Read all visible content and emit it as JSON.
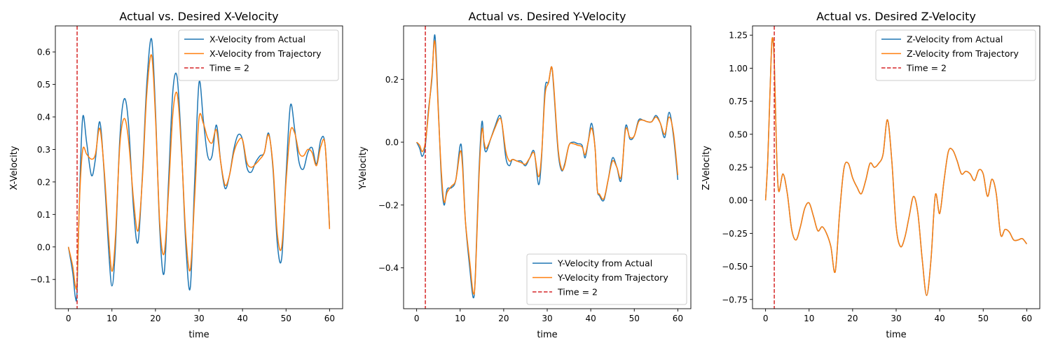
{
  "chart_data": [
    {
      "type": "line",
      "title": "Actual vs. Desired X-Velocity",
      "xlabel": "time",
      "ylabel": "X-Velocity",
      "xlim": [
        -3,
        63
      ],
      "ylim": [
        -0.19,
        0.68
      ],
      "xticks": [
        0,
        10,
        20,
        30,
        40,
        50,
        60
      ],
      "yticks": [
        -0.1,
        0.0,
        0.1,
        0.2,
        0.3,
        0.4,
        0.5,
        0.6
      ],
      "yticklabels": [
        "−0.1",
        "0.0",
        "0.1",
        "0.2",
        "0.3",
        "0.4",
        "0.5",
        "0.6"
      ],
      "grid": false,
      "legend_position": "top-right",
      "vline": {
        "x": 2,
        "label": "Time = 2",
        "color": "#d62728",
        "style": "dashed"
      },
      "series": [
        {
          "name": "X-Velocity from Actual",
          "color": "#1f77b4",
          "x": [
            0,
            1,
            1.6,
            2,
            2.6,
            3.3,
            4.2,
            5.3,
            6.2,
            7.2,
            8.2,
            9.2,
            10,
            10.8,
            11.8,
            12.8,
            13.8,
            15,
            16,
            17,
            18,
            19.1,
            20,
            21,
            22,
            23,
            24,
            25,
            26,
            27,
            28,
            29,
            30,
            31,
            32,
            33,
            34,
            35,
            36,
            37,
            38,
            39,
            40,
            41,
            42,
            43,
            44,
            45,
            46,
            47,
            48,
            49,
            50,
            51,
            52,
            53,
            54,
            55,
            56,
            57,
            58,
            59,
            60
          ],
          "y": [
            0.0,
            -0.08,
            -0.155,
            -0.13,
            0.18,
            0.4,
            0.32,
            0.22,
            0.27,
            0.385,
            0.23,
            0.0,
            -0.12,
            0.0,
            0.33,
            0.455,
            0.38,
            0.11,
            0.015,
            0.22,
            0.5,
            0.64,
            0.42,
            0.05,
            -0.08,
            0.2,
            0.48,
            0.52,
            0.3,
            0.0,
            -0.125,
            0.2,
            0.505,
            0.39,
            0.28,
            0.28,
            0.375,
            0.26,
            0.18,
            0.22,
            0.3,
            0.345,
            0.33,
            0.245,
            0.23,
            0.26,
            0.28,
            0.29,
            0.35,
            0.24,
            0.01,
            -0.035,
            0.22,
            0.435,
            0.36,
            0.26,
            0.24,
            0.29,
            0.305,
            0.255,
            0.33,
            0.31,
            0.06
          ]
        },
        {
          "name": "X-Velocity from Trajectory",
          "color": "#ff7f0e",
          "x": [
            0,
            1,
            1.6,
            2,
            2.6,
            3.3,
            4.2,
            5.3,
            6.2,
            7.2,
            8.2,
            9.2,
            10,
            10.8,
            11.8,
            12.8,
            13.8,
            15,
            16,
            17,
            18,
            19.1,
            20,
            21,
            22,
            23,
            24,
            25,
            26,
            27,
            28,
            29,
            30,
            31,
            32,
            33,
            34,
            35,
            36,
            37,
            38,
            39,
            40,
            41,
            42,
            43,
            44,
            45,
            46,
            47,
            48,
            49,
            50,
            51,
            52,
            53,
            54,
            55,
            56,
            57,
            58,
            59,
            60
          ],
          "y": [
            0.0,
            -0.06,
            -0.12,
            -0.1,
            0.16,
            0.3,
            0.285,
            0.27,
            0.285,
            0.365,
            0.24,
            0.04,
            -0.075,
            0.03,
            0.31,
            0.395,
            0.33,
            0.14,
            0.05,
            0.21,
            0.47,
            0.59,
            0.4,
            0.07,
            -0.02,
            0.17,
            0.41,
            0.47,
            0.29,
            0.03,
            -0.07,
            0.15,
            0.395,
            0.38,
            0.335,
            0.32,
            0.36,
            0.26,
            0.19,
            0.22,
            0.29,
            0.325,
            0.33,
            0.26,
            0.245,
            0.255,
            0.27,
            0.29,
            0.345,
            0.25,
            0.04,
            0.0,
            0.2,
            0.355,
            0.35,
            0.29,
            0.28,
            0.3,
            0.29,
            0.25,
            0.31,
            0.31,
            0.055
          ]
        }
      ]
    },
    {
      "type": "line",
      "title": "Actual vs. Desired Y-Velocity",
      "xlabel": "time",
      "ylabel": "Y-Velocity",
      "xlim": [
        -3,
        63
      ],
      "ylim": [
        -0.53,
        0.37
      ],
      "xticks": [
        0,
        10,
        20,
        30,
        40,
        50,
        60
      ],
      "yticks": [
        -0.4,
        -0.2,
        0.0,
        0.2
      ],
      "yticklabels": [
        "−0.4",
        "−0.2",
        "0.0",
        "0.2"
      ],
      "grid": false,
      "legend_position": "bottom-right",
      "vline": {
        "x": 2,
        "label": "Time = 2",
        "color": "#d62728",
        "style": "dashed"
      },
      "series": [
        {
          "name": "Y-Velocity from Actual",
          "color": "#1f77b4",
          "x": [
            0,
            0.7,
            1.3,
            2,
            2.7,
            3.5,
            4.2,
            5,
            5.7,
            6.3,
            7,
            8,
            9,
            10,
            10.5,
            11.2,
            12.2,
            13,
            13.5,
            14.3,
            15,
            15.5,
            16,
            17,
            18,
            19,
            19.6,
            20.5,
            21.3,
            22,
            23,
            24,
            25,
            26,
            27,
            28,
            28.7,
            29.5,
            30.3,
            31,
            31.5,
            32.5,
            33.3,
            34,
            35,
            36,
            37,
            38,
            38.7,
            39.4,
            40.2,
            41,
            41.5,
            42,
            43,
            44,
            45,
            46,
            47,
            48,
            49,
            50,
            51,
            52,
            53,
            54,
            55,
            56,
            57,
            58,
            59,
            60
          ],
          "y": [
            0.0,
            -0.02,
            -0.045,
            -0.01,
            0.1,
            0.2,
            0.34,
            0.1,
            -0.12,
            -0.2,
            -0.15,
            -0.145,
            -0.12,
            -0.01,
            -0.05,
            -0.25,
            -0.4,
            -0.495,
            -0.42,
            -0.1,
            0.065,
            -0.01,
            -0.03,
            0.01,
            0.05,
            0.085,
            0.06,
            -0.05,
            -0.075,
            -0.055,
            -0.06,
            -0.06,
            -0.075,
            -0.05,
            -0.03,
            -0.135,
            -0.05,
            0.17,
            0.19,
            0.24,
            0.17,
            -0.03,
            -0.09,
            -0.07,
            -0.01,
            0.0,
            -0.005,
            -0.01,
            -0.05,
            0.0,
            0.06,
            -0.02,
            -0.15,
            -0.17,
            -0.185,
            -0.12,
            -0.05,
            -0.08,
            -0.12,
            0.05,
            0.01,
            0.02,
            0.07,
            0.07,
            0.065,
            0.065,
            0.085,
            0.06,
            0.015,
            0.095,
            0.02,
            -0.12
          ]
        },
        {
          "name": "Y-Velocity from Trajectory",
          "color": "#ff7f0e",
          "x": [
            0,
            0.7,
            1.3,
            2,
            2.7,
            3.5,
            4.2,
            5,
            5.7,
            6.3,
            7,
            8,
            9,
            10,
            10.5,
            11.2,
            12.2,
            13,
            13.5,
            14.3,
            15,
            15.5,
            16,
            17,
            18,
            19,
            19.6,
            20.5,
            21.3,
            22,
            23,
            24,
            25,
            26,
            27,
            28,
            28.7,
            29.5,
            30.3,
            31,
            31.5,
            32.5,
            33.3,
            34,
            35,
            36,
            37,
            38,
            38.7,
            39.4,
            40.2,
            41,
            41.5,
            42,
            43,
            44,
            45,
            46,
            47,
            48,
            49,
            50,
            51,
            52,
            53,
            54,
            55,
            56,
            57,
            58,
            59,
            60
          ],
          "y": [
            0.0,
            -0.01,
            -0.03,
            0.0,
            0.09,
            0.21,
            0.32,
            0.09,
            -0.1,
            -0.19,
            -0.16,
            -0.14,
            -0.12,
            -0.03,
            -0.07,
            -0.25,
            -0.38,
            -0.48,
            -0.43,
            -0.12,
            0.04,
            0.0,
            -0.02,
            0.01,
            0.045,
            0.075,
            0.06,
            -0.03,
            -0.06,
            -0.055,
            -0.06,
            -0.065,
            -0.07,
            -0.05,
            -0.035,
            -0.11,
            -0.04,
            0.15,
            0.19,
            0.24,
            0.18,
            -0.02,
            -0.085,
            -0.075,
            -0.01,
            -0.005,
            -0.01,
            -0.015,
            -0.04,
            0.0,
            0.045,
            -0.02,
            -0.15,
            -0.165,
            -0.18,
            -0.12,
            -0.06,
            -0.08,
            -0.11,
            0.04,
            0.015,
            0.02,
            0.065,
            0.07,
            0.065,
            0.065,
            0.08,
            0.06,
            0.025,
            0.08,
            0.03,
            -0.105
          ]
        }
      ]
    },
    {
      "type": "line",
      "title": "Actual vs. Desired Z-Velocity",
      "xlabel": "time",
      "ylabel": "Z-Velocity",
      "xlim": [
        -3,
        63
      ],
      "ylim": [
        -0.82,
        1.32
      ],
      "xticks": [
        0,
        10,
        20,
        30,
        40,
        50,
        60
      ],
      "yticks": [
        -0.75,
        -0.5,
        -0.25,
        0.0,
        0.25,
        0.5,
        0.75,
        1.0,
        1.25
      ],
      "yticklabels": [
        "−0.75",
        "−0.50",
        "−0.25",
        "0.00",
        "0.25",
        "0.50",
        "0.75",
        "1.00",
        "1.25"
      ],
      "grid": false,
      "legend_position": "top-right",
      "vline": {
        "x": 2,
        "label": "Time = 2",
        "color": "#d62728",
        "style": "dashed"
      },
      "series": [
        {
          "name": "Z-Velocity from Actual",
          "color": "#1f77b4",
          "x": [
            0,
            0.5,
            1,
            1.5,
            2,
            2.5,
            3,
            4,
            5,
            6,
            7,
            8,
            9,
            10,
            11,
            12,
            13,
            14,
            15,
            16,
            17,
            18,
            19,
            20,
            21,
            22,
            23,
            24,
            25,
            26,
            27,
            28,
            29,
            30,
            31,
            32,
            33,
            34,
            35,
            36,
            37,
            38,
            39,
            40,
            41,
            42,
            43,
            44,
            45,
            46,
            47,
            48,
            49,
            50,
            51,
            52,
            53,
            54,
            55,
            56,
            57,
            58,
            59,
            60
          ],
          "y": [
            0.0,
            0.3,
            0.8,
            1.22,
            1.05,
            0.4,
            0.07,
            0.2,
            0.05,
            -0.22,
            -0.3,
            -0.2,
            -0.06,
            -0.02,
            -0.12,
            -0.23,
            -0.2,
            -0.25,
            -0.35,
            -0.54,
            -0.1,
            0.24,
            0.28,
            0.17,
            0.1,
            0.05,
            0.15,
            0.28,
            0.25,
            0.28,
            0.35,
            0.61,
            0.3,
            -0.2,
            -0.35,
            -0.28,
            -0.12,
            0.03,
            -0.1,
            -0.45,
            -0.72,
            -0.45,
            0.04,
            -0.1,
            0.15,
            0.37,
            0.38,
            0.3,
            0.2,
            0.22,
            0.2,
            0.15,
            0.23,
            0.2,
            0.03,
            0.16,
            0.05,
            -0.26,
            -0.22,
            -0.24,
            -0.3,
            -0.3,
            -0.29,
            -0.33
          ]
        },
        {
          "name": "Z-Velocity from Trajectory",
          "color": "#ff7f0e",
          "x": [
            0,
            0.5,
            1,
            1.5,
            2,
            2.5,
            3,
            4,
            5,
            6,
            7,
            8,
            9,
            10,
            11,
            12,
            13,
            14,
            15,
            16,
            17,
            18,
            19,
            20,
            21,
            22,
            23,
            24,
            25,
            26,
            27,
            28,
            29,
            30,
            31,
            32,
            33,
            34,
            35,
            36,
            37,
            38,
            39,
            40,
            41,
            42,
            43,
            44,
            45,
            46,
            47,
            48,
            49,
            50,
            51,
            52,
            53,
            54,
            55,
            56,
            57,
            58,
            59,
            60
          ],
          "y": [
            0.0,
            0.3,
            0.8,
            1.22,
            1.05,
            0.4,
            0.07,
            0.2,
            0.05,
            -0.22,
            -0.3,
            -0.2,
            -0.06,
            -0.02,
            -0.12,
            -0.23,
            -0.2,
            -0.25,
            -0.35,
            -0.54,
            -0.1,
            0.24,
            0.28,
            0.17,
            0.1,
            0.05,
            0.15,
            0.28,
            0.25,
            0.28,
            0.35,
            0.61,
            0.3,
            -0.2,
            -0.35,
            -0.28,
            -0.12,
            0.03,
            -0.1,
            -0.45,
            -0.72,
            -0.45,
            0.04,
            -0.1,
            0.15,
            0.37,
            0.38,
            0.3,
            0.2,
            0.22,
            0.2,
            0.15,
            0.23,
            0.2,
            0.03,
            0.16,
            0.05,
            -0.26,
            -0.22,
            -0.24,
            -0.3,
            -0.3,
            -0.29,
            -0.33
          ]
        }
      ]
    }
  ]
}
